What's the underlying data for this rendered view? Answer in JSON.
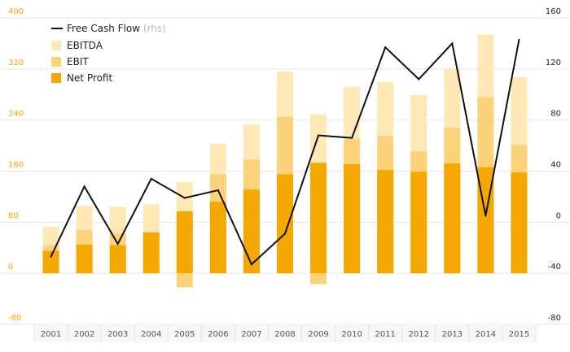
{
  "chart_data": {
    "type": "bar",
    "categories": [
      "2001",
      "2002",
      "2003",
      "2004",
      "2005",
      "2006",
      "2007",
      "2008",
      "2009",
      "2010",
      "2011",
      "2012",
      "2013",
      "2014",
      "2015"
    ],
    "series": [
      {
        "name": "EBITDA",
        "kind": "bar",
        "axis": "left",
        "color": "#FDE8B6",
        "values": [
          73,
          106,
          104,
          108,
          143,
          203,
          233,
          316,
          249,
          292,
          300,
          279,
          320,
          374,
          307
        ]
      },
      {
        "name": "EBIT",
        "kind": "bar",
        "axis": "left",
        "color": "#FCD27A",
        "values": [
          44,
          68,
          62,
          64,
          -22,
          155,
          178,
          245,
          -17,
          210,
          215,
          191,
          228,
          276,
          201
        ]
      },
      {
        "name": "Net Profit",
        "kind": "bar",
        "axis": "left",
        "color": "#F5A800",
        "values": [
          35,
          45,
          44,
          64,
          97,
          112,
          131,
          155,
          173,
          171,
          162,
          159,
          172,
          166,
          158
        ]
      },
      {
        "name": "Free Cash Flow",
        "note": "(rhs)",
        "kind": "line",
        "axis": "right",
        "color": "#111111",
        "values": [
          -27,
          28,
          -17,
          34,
          19,
          25,
          -33,
          -9,
          68,
          66,
          137,
          112,
          140,
          5,
          143
        ]
      }
    ],
    "ylim": [
      -80,
      400
    ],
    "y2lim": [
      -80,
      160
    ],
    "yticks": [
      "-80",
      "0",
      "80",
      "160",
      "240",
      "320",
      "400"
    ],
    "y2ticks": [
      "-80",
      "-40",
      "0",
      "40",
      "80",
      "120",
      "160"
    ],
    "legend_position": "top-left",
    "grid": true
  }
}
